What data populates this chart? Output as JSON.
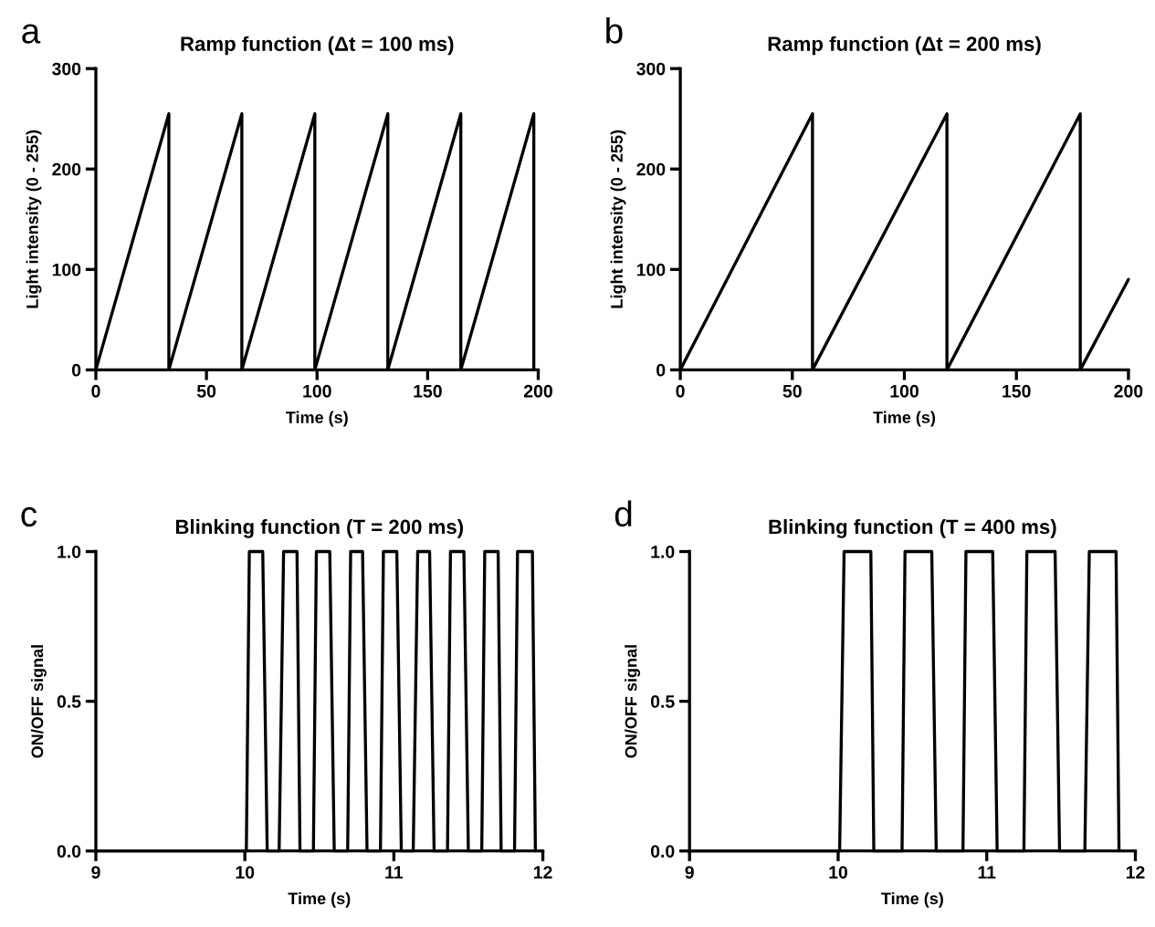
{
  "chart_data": [
    {
      "type": "line",
      "title": "Ramp function (Δt = 100 ms)",
      "xlabel": "Time (s)",
      "ylabel": "Light intensity (0 - 255)",
      "annotations": [
        "a"
      ],
      "series": [
        {
          "color": "#000000",
          "x": [
            0,
            33,
            33,
            66,
            66,
            99,
            99,
            132,
            132,
            165,
            165,
            198,
            198
          ],
          "values": [
            0,
            255,
            0,
            255,
            0,
            255,
            0,
            255,
            0,
            255,
            0,
            255,
            0
          ]
        }
      ],
      "xlim": [
        0,
        200
      ],
      "xticks": [
        0,
        50,
        100,
        150,
        200
      ],
      "ylim": [
        0,
        300
      ],
      "yticks": [
        0,
        100,
        200,
        300
      ]
    },
    {
      "type": "line",
      "title": "Ramp function (Δt = 200 ms)",
      "xlabel": "Time (s)",
      "ylabel": "Light intensity (0 - 255)",
      "annotations": [
        "b"
      ],
      "series": [
        {
          "color": "#000000",
          "x": [
            0,
            59,
            59,
            119,
            119,
            178.5,
            178.5,
            200
          ],
          "values": [
            0,
            255,
            0,
            255,
            0,
            255,
            0,
            90
          ]
        }
      ],
      "xlim": [
        0,
        200
      ],
      "xticks": [
        0,
        50,
        100,
        150,
        200
      ],
      "ylim": [
        0,
        300
      ],
      "yticks": [
        0,
        100,
        200,
        300
      ]
    },
    {
      "type": "line",
      "title": "Blinking function (T = 200 ms)",
      "xlabel": "Time (s)",
      "ylabel": "ON/OFF signal",
      "annotations": [
        "c"
      ],
      "series": [
        {
          "color": "#000000",
          "x": [
            9,
            10.01,
            10.03,
            10.12,
            10.15,
            10.23,
            10.26,
            10.35,
            10.37,
            10.46,
            10.48,
            10.57,
            10.6,
            10.69,
            10.71,
            10.79,
            10.82,
            10.91,
            10.93,
            11.02,
            11.05,
            11.13,
            11.16,
            11.24,
            11.27,
            11.36,
            11.38,
            11.47,
            11.5,
            11.59,
            11.61,
            11.7,
            11.72,
            11.81,
            11.83,
            11.93,
            11.95
          ],
          "values": [
            0,
            0,
            1,
            1,
            0,
            0,
            1,
            1,
            0,
            0,
            1,
            1,
            0,
            0,
            1,
            1,
            0,
            0,
            1,
            1,
            0,
            0,
            1,
            1,
            0,
            0,
            1,
            1,
            0,
            0,
            1,
            1,
            0,
            0,
            1,
            1,
            0
          ]
        }
      ],
      "xlim": [
        9,
        12
      ],
      "xticks": [
        9,
        10,
        11,
        12
      ],
      "ylim": [
        0,
        1
      ],
      "yticks": [
        {
          "value": 0,
          "label": "0.0"
        },
        {
          "value": 0.5,
          "label": "0.5"
        },
        {
          "value": 1,
          "label": "1.0"
        }
      ]
    },
    {
      "type": "line",
      "title": "Blinking function (T = 400 ms)",
      "xlabel": "Time (s)",
      "ylabel": "ON/OFF signal",
      "annotations": [
        "d"
      ],
      "series": [
        {
          "color": "#000000",
          "x": [
            9,
            10.01,
            10.04,
            10.22,
            10.24,
            10.43,
            10.45,
            10.63,
            10.66,
            10.84,
            10.86,
            11.04,
            11.07,
            11.25,
            11.27,
            11.46,
            11.49,
            11.66,
            11.69,
            11.87,
            11.89
          ],
          "values": [
            0,
            0,
            1,
            1,
            0,
            0,
            1,
            1,
            0,
            0,
            1,
            1,
            0,
            0,
            1,
            1,
            0,
            0,
            1,
            1,
            0
          ]
        }
      ],
      "xlim": [
        9,
        12
      ],
      "xticks": [
        9,
        10,
        11,
        12
      ],
      "ylim": [
        0,
        1
      ],
      "yticks": [
        {
          "value": 0,
          "label": "0.0"
        },
        {
          "value": 0.5,
          "label": "0.5"
        },
        {
          "value": 1,
          "label": "1.0"
        }
      ]
    }
  ]
}
